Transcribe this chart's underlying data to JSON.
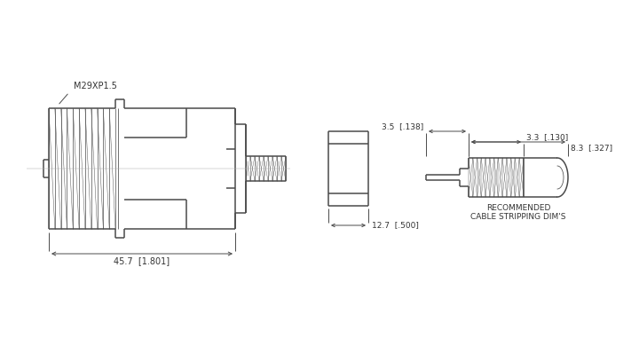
{
  "bg_color": "#ffffff",
  "line_color": "#4a4a4a",
  "lw": 1.1,
  "thin_lw": 0.55,
  "dim_lw": 0.7,
  "text_color": "#333333",
  "font_size": 6.5,
  "title_label": "M29XP1.5",
  "dim_45_7": "45.7  [1.801]",
  "dim_12_7": "12.7  [.500]",
  "dim_3_5": "3.5  [.138]",
  "dim_3_3": "3.3  [.130]",
  "dim_8_3": "8.3  [.327]",
  "rec_label1": "RECOMMENDED",
  "rec_label2": "CABLE STRIPPING DIM'S"
}
